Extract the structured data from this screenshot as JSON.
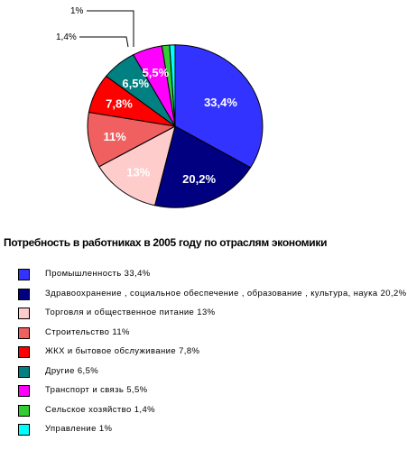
{
  "chart_data": {
    "type": "pie",
    "title": "Потребность в работниках в 2005 году по отраслям экономики",
    "slices": [
      {
        "label": "33,4%",
        "value": 33.4,
        "color": "#3333ff",
        "text_color": "#ffffff",
        "legend": "Промышленность  33,4%"
      },
      {
        "label": "20,2%",
        "value": 20.2,
        "color": "#000080",
        "text_color": "#ffffff",
        "legend": "Здравоохранение , социальное обеспечение , образование , культура, наука  20,2%"
      },
      {
        "label": "13%",
        "value": 13,
        "color": "#ffcccc",
        "text_color": "#ffffff",
        "legend": "Торговля и общественное питание   13%"
      },
      {
        "label": "11%",
        "value": 11,
        "color": "#f06060",
        "text_color": "#ffffff",
        "legend": "Строительство  11%"
      },
      {
        "label": "7,8%",
        "value": 7.8,
        "color": "#ff0000",
        "text_color": "#ffffff",
        "legend": "ЖКХ и бытовое обслуживание  7,8%"
      },
      {
        "label": "6,5%",
        "value": 6.5,
        "color": "#008080",
        "text_color": "#ffffff",
        "legend": "Другие 6,5%"
      },
      {
        "label": "5,5%",
        "value": 5.5,
        "color": "#ff00ff",
        "text_color": "#ffffff",
        "legend": "Транспорт и связь  5,5%"
      },
      {
        "label": "1,4%",
        "value": 1.4,
        "color": "#33cc33",
        "text_color": "#000000",
        "legend": "Сельское хозяйство 1,4%"
      },
      {
        "label": "1%",
        "value": 1,
        "color": "#00ffff",
        "text_color": "#000000",
        "legend": "Управление  1%"
      }
    ],
    "legend_position": "bottom",
    "start_angle_deg": 90,
    "direction": "clockwise"
  }
}
